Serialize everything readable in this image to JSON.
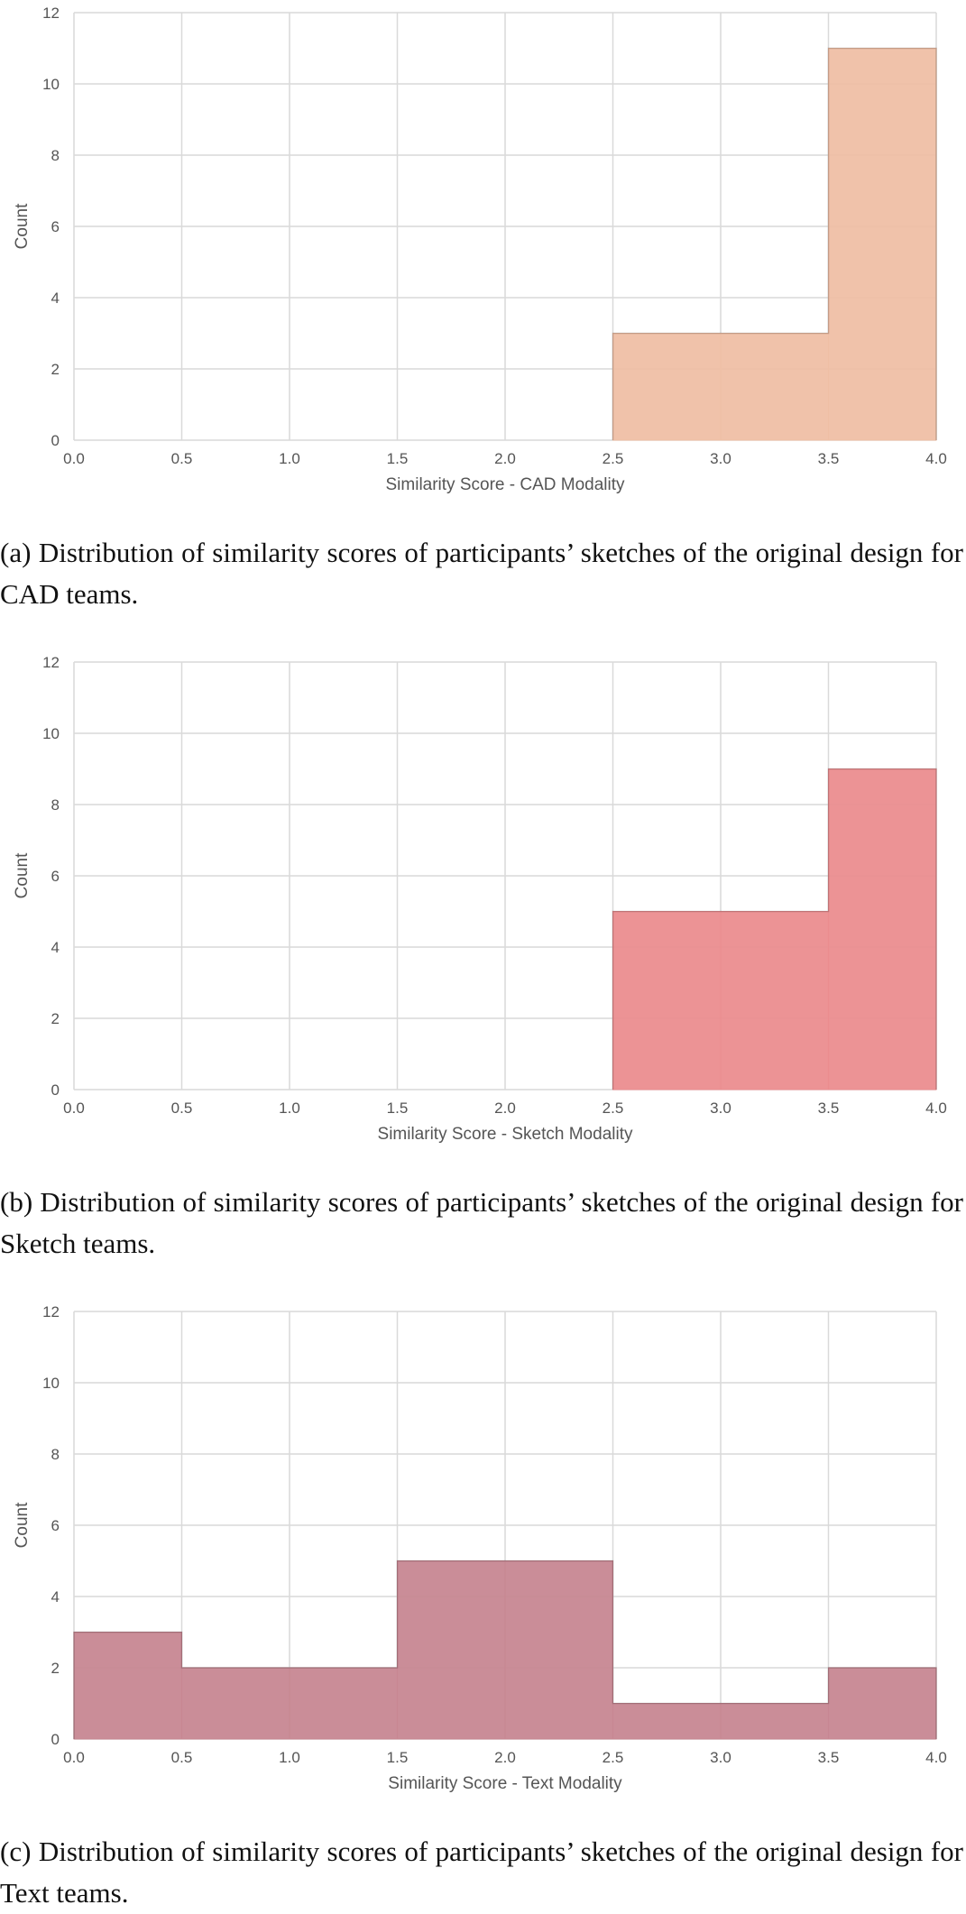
{
  "panels": [
    {
      "caption": "(a) Distribution of similarity scores of participants’ sketches of the original design for CAD teams.",
      "chart": {
        "type": "bar",
        "xlabel": "Similarity Score - CAD Modality",
        "ylabel": "Count",
        "xlim": [
          0.0,
          4.0
        ],
        "ylim": [
          0,
          12
        ],
        "xticks": [
          "0.0",
          "0.5",
          "1.0",
          "1.5",
          "2.0",
          "2.5",
          "3.0",
          "3.5",
          "4.0"
        ],
        "yticks": [
          "0",
          "2",
          "4",
          "6",
          "8",
          "10",
          "12"
        ],
        "bins": [
          {
            "x0": 0.0,
            "x1": 0.5,
            "count": 0
          },
          {
            "x0": 0.5,
            "x1": 1.0,
            "count": 0
          },
          {
            "x0": 1.0,
            "x1": 1.5,
            "count": 0
          },
          {
            "x0": 1.5,
            "x1": 2.0,
            "count": 0
          },
          {
            "x0": 2.0,
            "x1": 2.5,
            "count": 0
          },
          {
            "x0": 2.5,
            "x1": 3.0,
            "count": 3
          },
          {
            "x0": 3.0,
            "x1": 3.5,
            "count": 3
          },
          {
            "x0": 3.5,
            "x1": 4.0,
            "count": 11
          }
        ],
        "grid": true,
        "color": "#efbfa5"
      }
    },
    {
      "caption": "(b) Distribution of similarity scores of participants’ sketches of the original design for Sketch teams.",
      "chart": {
        "type": "bar",
        "xlabel": "Similarity Score - Sketch Modality",
        "ylabel": "Count",
        "xlim": [
          0.0,
          4.0
        ],
        "ylim": [
          0,
          12
        ],
        "xticks": [
          "0.0",
          "0.5",
          "1.0",
          "1.5",
          "2.0",
          "2.5",
          "3.0",
          "3.5",
          "4.0"
        ],
        "yticks": [
          "0",
          "2",
          "4",
          "6",
          "8",
          "10",
          "12"
        ],
        "bins": [
          {
            "x0": 0.0,
            "x1": 0.5,
            "count": 0
          },
          {
            "x0": 0.5,
            "x1": 1.0,
            "count": 0
          },
          {
            "x0": 1.0,
            "x1": 1.5,
            "count": 0
          },
          {
            "x0": 1.5,
            "x1": 2.0,
            "count": 0
          },
          {
            "x0": 2.0,
            "x1": 2.5,
            "count": 0
          },
          {
            "x0": 2.5,
            "x1": 3.0,
            "count": 5
          },
          {
            "x0": 3.0,
            "x1": 3.5,
            "count": 5
          },
          {
            "x0": 3.5,
            "x1": 4.0,
            "count": 9
          }
        ],
        "grid": true,
        "color": "#eb8d8f"
      }
    },
    {
      "caption": "(c) Distribution of similarity scores of participants’ sketches of the original design for Text teams.",
      "chart": {
        "type": "bar",
        "xlabel": "Similarity Score - Text Modality",
        "ylabel": "Count",
        "xlim": [
          0.0,
          4.0
        ],
        "ylim": [
          0,
          12
        ],
        "xticks": [
          "0.0",
          "0.5",
          "1.0",
          "1.5",
          "2.0",
          "2.5",
          "3.0",
          "3.5",
          "4.0"
        ],
        "yticks": [
          "0",
          "2",
          "4",
          "6",
          "8",
          "10",
          "12"
        ],
        "bins": [
          {
            "x0": 0.0,
            "x1": 0.5,
            "count": 3
          },
          {
            "x0": 0.5,
            "x1": 1.0,
            "count": 2
          },
          {
            "x0": 1.0,
            "x1": 1.5,
            "count": 2
          },
          {
            "x0": 1.5,
            "x1": 2.0,
            "count": 5
          },
          {
            "x0": 2.0,
            "x1": 2.5,
            "count": 5
          },
          {
            "x0": 2.5,
            "x1": 3.0,
            "count": 1
          },
          {
            "x0": 3.0,
            "x1": 3.5,
            "count": 1
          },
          {
            "x0": 3.5,
            "x1": 4.0,
            "count": 2
          }
        ],
        "grid": true,
        "color": "#c78792"
      }
    }
  ],
  "chart_data": [
    {
      "type": "bar",
      "categories": [
        "0.0-0.5",
        "0.5-1.0",
        "1.0-1.5",
        "1.5-2.0",
        "2.0-2.5",
        "2.5-3.0",
        "3.0-3.5",
        "3.5-4.0"
      ],
      "values": [
        0,
        0,
        0,
        0,
        0,
        3,
        3,
        11
      ],
      "xlabel": "Similarity Score - CAD Modality",
      "ylabel": "Count",
      "xlim": [
        0.0,
        4.0
      ],
      "ylim": [
        0,
        12
      ]
    },
    {
      "type": "bar",
      "categories": [
        "0.0-0.5",
        "0.5-1.0",
        "1.0-1.5",
        "1.5-2.0",
        "2.0-2.5",
        "2.5-3.0",
        "3.0-3.5",
        "3.5-4.0"
      ],
      "values": [
        0,
        0,
        0,
        0,
        0,
        5,
        5,
        9
      ],
      "xlabel": "Similarity Score - Sketch Modality",
      "ylabel": "Count",
      "xlim": [
        0.0,
        4.0
      ],
      "ylim": [
        0,
        12
      ]
    },
    {
      "type": "bar",
      "categories": [
        "0.0-0.5",
        "0.5-1.0",
        "1.0-1.5",
        "1.5-2.0",
        "2.0-2.5",
        "2.5-3.0",
        "3.0-3.5",
        "3.5-4.0"
      ],
      "values": [
        3,
        2,
        2,
        5,
        5,
        1,
        1,
        2
      ],
      "xlabel": "Similarity Score - Text Modality",
      "ylabel": "Count",
      "xlim": [
        0.0,
        4.0
      ],
      "ylim": [
        0,
        12
      ]
    }
  ]
}
